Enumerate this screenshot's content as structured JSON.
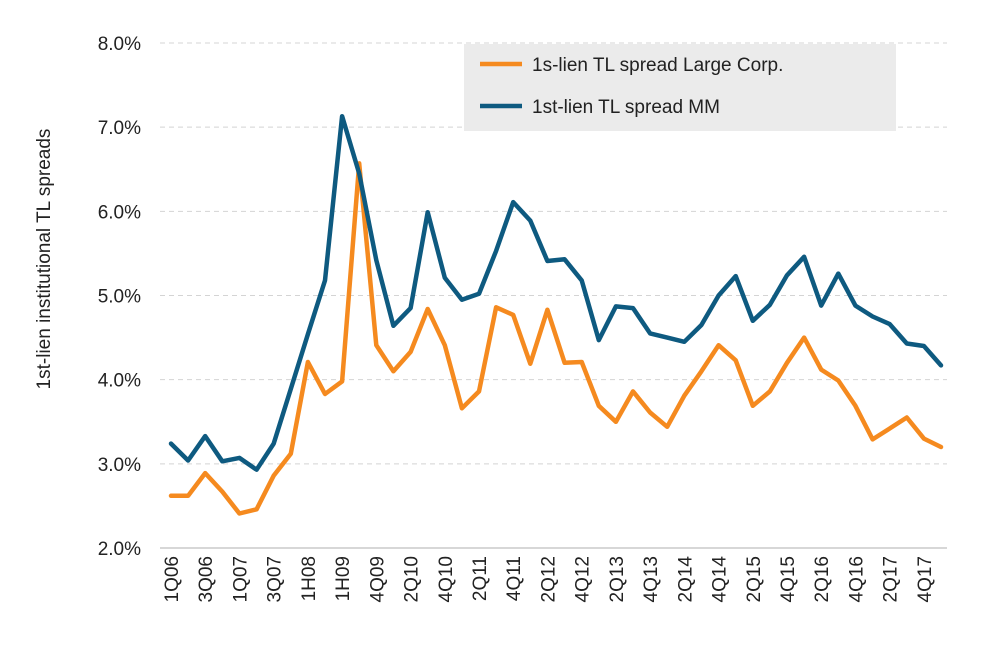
{
  "chart_data": {
    "type": "line",
    "ylabel": "1st-lien institutional TL spreads",
    "xlabel": "",
    "ylim": [
      2.0,
      8.0
    ],
    "yticks": [
      "2.0%",
      "3.0%",
      "4.0%",
      "5.0%",
      "6.0%",
      "7.0%",
      "8.0%"
    ],
    "ytick_values": [
      2.0,
      3.0,
      4.0,
      5.0,
      6.0,
      7.0,
      8.0
    ],
    "grid": "horizontal dashed",
    "legend_position": "top-right",
    "x": [
      "1Q06",
      "2Q06",
      "3Q06",
      "4Q06",
      "1Q07",
      "2Q07",
      "3Q07",
      "4Q07",
      "1H08",
      "2H08",
      "1H09",
      "2H09",
      "4Q09",
      "1Q10",
      "2Q10",
      "3Q10",
      "4Q10",
      "1Q11",
      "2Q11",
      "3Q11",
      "4Q11",
      "1Q12",
      "2Q12",
      "3Q12",
      "4Q12",
      "1Q13",
      "2Q13",
      "3Q13",
      "4Q13",
      "1Q14",
      "2Q14",
      "3Q14",
      "4Q14",
      "1Q15",
      "2Q15",
      "3Q15",
      "4Q15",
      "1Q16",
      "2Q16",
      "3Q16",
      "4Q16",
      "1Q17",
      "2Q17",
      "3Q17",
      "4Q17",
      "1Q18"
    ],
    "xtick_labels": [
      "1Q06",
      "",
      "3Q06",
      "",
      "1Q07",
      "",
      "3Q07",
      "",
      "1H08",
      "",
      "1H09",
      "",
      "4Q09",
      "",
      "2Q10",
      "",
      "4Q10",
      "",
      "2Q11",
      "",
      "4Q11",
      "",
      "2Q12",
      "",
      "4Q12",
      "",
      "2Q13",
      "",
      "4Q13",
      "",
      "2Q14",
      "",
      "4Q14",
      "",
      "2Q15",
      "",
      "4Q15",
      "",
      "2Q16",
      "",
      "4Q16",
      "",
      "2Q17",
      "",
      "4Q17",
      ""
    ],
    "series": [
      {
        "name": "1s-lien TL spread Large Corp.",
        "color": "#F58A1F",
        "values": [
          2.62,
          2.62,
          2.89,
          2.67,
          2.41,
          2.46,
          2.86,
          3.12,
          4.21,
          3.83,
          3.98,
          6.57,
          4.41,
          4.1,
          4.33,
          4.84,
          4.41,
          3.66,
          3.86,
          4.86,
          4.77,
          4.19,
          4.83,
          4.2,
          4.21,
          3.69,
          3.5,
          3.86,
          3.61,
          3.44,
          3.81,
          4.1,
          4.41,
          4.23,
          3.69,
          3.86,
          4.2,
          4.5,
          4.12,
          3.99,
          3.69,
          3.29,
          3.42,
          3.55,
          3.3,
          3.2
        ]
      },
      {
        "name": "1st-lien TL spread MM",
        "color": "#0E5A80",
        "values": [
          3.24,
          3.04,
          3.33,
          3.03,
          3.07,
          2.93,
          3.24,
          3.89,
          4.54,
          5.18,
          7.13,
          6.45,
          5.42,
          4.64,
          4.85,
          5.99,
          5.21,
          4.95,
          5.02,
          5.53,
          6.11,
          5.89,
          5.41,
          5.43,
          5.18,
          4.47,
          4.87,
          4.85,
          4.55,
          4.5,
          4.45,
          4.65,
          5.0,
          5.23,
          4.7,
          4.89,
          5.24,
          5.46,
          4.88,
          5.26,
          4.88,
          4.75,
          4.66,
          4.43,
          4.4,
          4.17
        ]
      }
    ]
  }
}
